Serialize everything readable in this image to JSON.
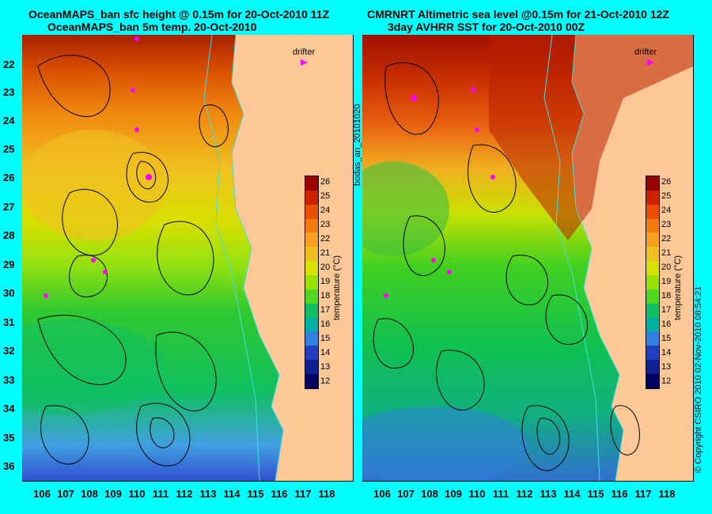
{
  "left_panel": {
    "title_line1": "OceanMAPS_ban sfc height @ 0.15m for 20-Oct-2010 11Z",
    "title_line2": "OceanMAPS_ban 5m temp. 20-Oct-2010",
    "drifter_label": "drifter"
  },
  "right_panel": {
    "title_line1": "CMRNRT Altimetric sea level  @0.15m  for 21-Oct-2010 12Z",
    "title_line2": "3day AVHRR SST for 20-Oct-2010 00Z",
    "drifter_label": "drifter"
  },
  "y_ticks": [
    "22",
    "23",
    "24",
    "25",
    "26",
    "27",
    "28",
    "29",
    "30",
    "31",
    "32",
    "33",
    "34",
    "35",
    "36"
  ],
  "x_ticks": [
    "106",
    "107",
    "108",
    "109",
    "110",
    "111",
    "112",
    "113",
    "114",
    "115",
    "116",
    "117",
    "118"
  ],
  "colorbar": {
    "ticks": [
      "26",
      "25",
      "24",
      "23",
      "22",
      "21",
      "20",
      "19",
      "18",
      "17",
      "16",
      "15",
      "14",
      "13",
      "12"
    ],
    "label": "temperature (°C)",
    "colors": [
      "#990000",
      "#cc2200",
      "#e85000",
      "#f07a10",
      "#f5a020",
      "#f0c020",
      "#d8e000",
      "#9ae000",
      "#50d820",
      "#10c060",
      "#00b0a0",
      "#3080e0",
      "#2040c0",
      "#102090",
      "#000060"
    ]
  },
  "side_label": "bodas_an_20101020",
  "copyright": "© Copyright CSIRO 2010   02-Nov-2010 08:54:21",
  "colors": {
    "background": "#00ffff",
    "land": "#ffc896",
    "contour": "#000000",
    "isobath": "#40e0e0",
    "drifter": "#ff00ff"
  }
}
